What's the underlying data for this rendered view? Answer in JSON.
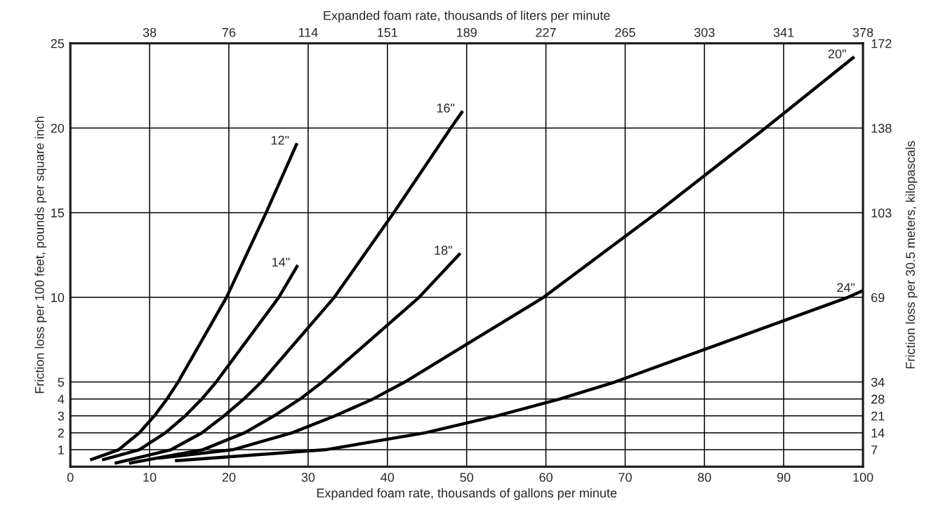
{
  "chart_data": {
    "type": "line",
    "xlabel": "Expanded foam rate, thousands of gallons per minute",
    "ylabel": "Friction loss per 100 feet, pounds per square inch",
    "y2label": "Friction loss per 30.5 meters, kilopascals",
    "x2label": "Expanded foam rate, thousands of liters per minute",
    "xlim": [
      0,
      100
    ],
    "xticks": [
      0,
      10,
      20,
      30,
      40,
      50,
      60,
      70,
      80,
      90,
      100
    ],
    "ylim": [
      0,
      25
    ],
    "yticks": [
      1,
      2,
      3,
      4,
      5,
      10,
      15,
      20,
      25
    ],
    "x2lim": [
      0,
      378.5
    ],
    "x2ticks": [
      {
        "value": 37.85,
        "label": "38"
      },
      {
        "value": 75.7,
        "label": "76"
      },
      {
        "value": 113.55,
        "label": "114"
      },
      {
        "value": 151.4,
        "label": "151"
      },
      {
        "value": 189.25,
        "label": "189"
      },
      {
        "value": 227.1,
        "label": "227"
      },
      {
        "value": 264.95,
        "label": "265"
      },
      {
        "value": 302.8,
        "label": "303"
      },
      {
        "value": 340.65,
        "label": "341"
      },
      {
        "value": 378.5,
        "label": "378"
      }
    ],
    "y2lim": [
      0,
      172.4
    ],
    "y2ticks": [
      {
        "value": 6.9,
        "label": "7"
      },
      {
        "value": 13.79,
        "label": "14"
      },
      {
        "value": 20.69,
        "label": "21"
      },
      {
        "value": 27.58,
        "label": "28"
      },
      {
        "value": 34.48,
        "label": "34"
      },
      {
        "value": 68.95,
        "label": "69"
      },
      {
        "value": 103.4,
        "label": "103"
      },
      {
        "value": 137.9,
        "label": "138"
      },
      {
        "value": 172.4,
        "label": "172"
      }
    ],
    "grid": true,
    "legend": false,
    "line_style": "solid",
    "marker": "none",
    "series": [
      {
        "name": "12\"",
        "color": "#000000",
        "x": [
          2.5,
          6.1,
          8.7,
          10.6,
          12.2,
          13.6,
          19.7,
          24.7,
          28.6
        ],
        "values": [
          0.4,
          1,
          2,
          3,
          4,
          5,
          10,
          15,
          19.1
        ]
      },
      {
        "name": "14\"",
        "color": "#000000",
        "x": [
          4.0,
          8.7,
          12.0,
          14.5,
          16.6,
          18.4,
          26.3,
          28.7
        ],
        "values": [
          0.4,
          1,
          2,
          3,
          4,
          5,
          10,
          11.9
        ]
      },
      {
        "name": "16\"",
        "color": "#000000",
        "x": [
          5.6,
          12.7,
          16.6,
          19.4,
          21.9,
          24.1,
          33.3,
          40.8,
          48.0,
          49.5
        ],
        "values": [
          0.2,
          1,
          2,
          3,
          4,
          5,
          10,
          15,
          20,
          21.0
        ]
      },
      {
        "name": "18\"",
        "color": "#000000",
        "x": [
          7.4,
          16.7,
          22.0,
          25.7,
          29.0,
          31.8,
          44.0,
          49.2
        ],
        "values": [
          0.2,
          1,
          2,
          3,
          4,
          5,
          10,
          12.6
        ]
      },
      {
        "name": "20\"",
        "color": "#000000",
        "x": [
          11.1,
          20.5,
          28.0,
          33.4,
          38.2,
          42.2,
          59.7,
          74.0,
          87.7,
          98.9
        ],
        "values": [
          0.5,
          1,
          2,
          3,
          4,
          5,
          10,
          15,
          20,
          24.2
        ]
      },
      {
        "name": "24\"",
        "color": "#000000",
        "x": [
          13.2,
          32.2,
          44.8,
          53.8,
          61.8,
          68.7,
          98.1,
          100
        ],
        "values": [
          0.35,
          1,
          2,
          3,
          4,
          5,
          10,
          10.4
        ]
      }
    ]
  }
}
